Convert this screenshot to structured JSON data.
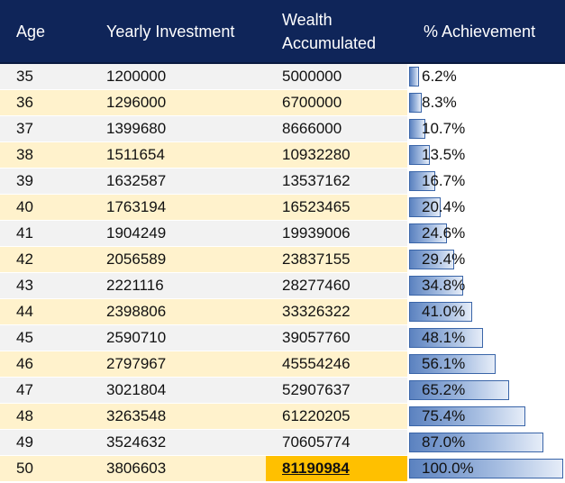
{
  "headers": {
    "age": "Age",
    "investment": "Yearly Investment",
    "wealth_line1": "Wealth",
    "wealth_line2": "Accumulated",
    "achievement": "% Achievement"
  },
  "rows": [
    {
      "age": "35",
      "investment": "1200000",
      "wealth": "5000000",
      "achievement": "6.2%",
      "fraction": 0.062
    },
    {
      "age": "36",
      "investment": "1296000",
      "wealth": "6700000",
      "achievement": "8.3%",
      "fraction": 0.083
    },
    {
      "age": "37",
      "investment": "1399680",
      "wealth": "8666000",
      "achievement": "10.7%",
      "fraction": 0.107
    },
    {
      "age": "38",
      "investment": "1511654",
      "wealth": "10932280",
      "achievement": "13.5%",
      "fraction": 0.135
    },
    {
      "age": "39",
      "investment": "1632587",
      "wealth": "13537162",
      "achievement": "16.7%",
      "fraction": 0.167
    },
    {
      "age": "40",
      "investment": "1763194",
      "wealth": "16523465",
      "achievement": "20.4%",
      "fraction": 0.204
    },
    {
      "age": "41",
      "investment": "1904249",
      "wealth": "19939006",
      "achievement": "24.6%",
      "fraction": 0.246
    },
    {
      "age": "42",
      "investment": "2056589",
      "wealth": "23837155",
      "achievement": "29.4%",
      "fraction": 0.294
    },
    {
      "age": "43",
      "investment": "2221116",
      "wealth": "28277460",
      "achievement": "34.8%",
      "fraction": 0.348
    },
    {
      "age": "44",
      "investment": "2398806",
      "wealth": "33326322",
      "achievement": "41.0%",
      "fraction": 0.41
    },
    {
      "age": "45",
      "investment": "2590710",
      "wealth": "39057760",
      "achievement": "48.1%",
      "fraction": 0.481
    },
    {
      "age": "46",
      "investment": "2797967",
      "wealth": "45554246",
      "achievement": "56.1%",
      "fraction": 0.561
    },
    {
      "age": "47",
      "investment": "3021804",
      "wealth": "52907637",
      "achievement": "65.2%",
      "fraction": 0.652
    },
    {
      "age": "48",
      "investment": "3263548",
      "wealth": "61220205",
      "achievement": "75.4%",
      "fraction": 0.754
    },
    {
      "age": "49",
      "investment": "3524632",
      "wealth": "70605774",
      "achievement": "87.0%",
      "fraction": 0.87
    },
    {
      "age": "50",
      "investment": "3806603",
      "wealth": "81190984",
      "achievement": "100.0%",
      "fraction": 1.0,
      "highlight_wealth": true
    }
  ],
  "colors": {
    "header_bg": "#0f2559",
    "band_odd": "#f2f2f2",
    "band_even": "#fff2cc",
    "highlight": "#ffc000",
    "bar": "#5b82c0"
  }
}
